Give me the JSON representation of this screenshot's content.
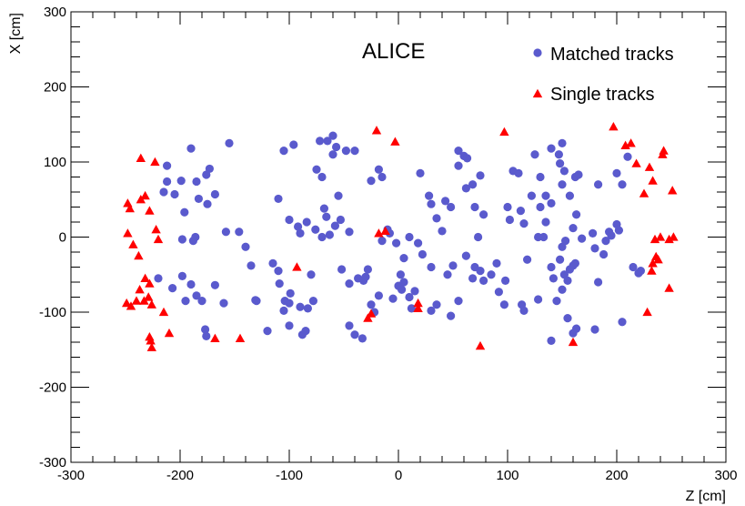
{
  "chart_data": {
    "type": "scatter",
    "title": "",
    "annotation": "ALICE",
    "xlabel": "Z [cm]",
    "ylabel": "X [cm]",
    "xlim": [
      -300,
      300
    ],
    "ylim": [
      -300,
      300
    ],
    "xticks": [
      -300,
      -200,
      -100,
      0,
      100,
      200,
      300
    ],
    "yticks": [
      -300,
      -200,
      -100,
      0,
      100,
      200,
      300
    ],
    "grid": false,
    "legend_position": "top-right",
    "series": [
      {
        "name": "Matched tracks",
        "marker": "circle",
        "color": "#5a5acd",
        "points": [
          [
            -212,
            95
          ],
          [
            -199,
            75
          ],
          [
            -205,
            57
          ],
          [
            -196,
            33
          ],
          [
            -190,
            118
          ],
          [
            -185,
            74
          ],
          [
            -176,
            83
          ],
          [
            -173,
            91
          ],
          [
            -175,
            44
          ],
          [
            -168,
            57
          ],
          [
            -183,
            51
          ],
          [
            -212,
            74
          ],
          [
            -215,
            60
          ],
          [
            -198,
            -3
          ],
          [
            -186,
            0
          ],
          [
            -188,
            -5
          ],
          [
            -220,
            -55
          ],
          [
            -207,
            -68
          ],
          [
            -198,
            -52
          ],
          [
            -190,
            -63
          ],
          [
            -195,
            -85
          ],
          [
            -185,
            -78
          ],
          [
            -180,
            -85
          ],
          [
            -177,
            -123
          ],
          [
            -176,
            -132
          ],
          [
            -168,
            -64
          ],
          [
            -160,
            -88
          ],
          [
            -155,
            125
          ],
          [
            -158,
            7
          ],
          [
            -146,
            7
          ],
          [
            -140,
            -13
          ],
          [
            -135,
            -38
          ],
          [
            -130,
            -85
          ],
          [
            -131,
            -84
          ],
          [
            -120,
            -125
          ],
          [
            -115,
            -35
          ],
          [
            -110,
            -45
          ],
          [
            -109,
            -62
          ],
          [
            -104,
            -85
          ],
          [
            -105,
            115
          ],
          [
            -96,
            123
          ],
          [
            -100,
            23
          ],
          [
            -110,
            51
          ],
          [
            -105,
            -98
          ],
          [
            -100,
            -118
          ],
          [
            -99,
            -75
          ],
          [
            -100,
            -88
          ],
          [
            -90,
            -93
          ],
          [
            -88,
            -130
          ],
          [
            -85,
            -125
          ],
          [
            -83,
            -95
          ],
          [
            -80,
            -50
          ],
          [
            -78,
            -85
          ],
          [
            -75,
            90
          ],
          [
            -70,
            80
          ],
          [
            -72,
            128
          ],
          [
            -65,
            128
          ],
          [
            -60,
            135
          ],
          [
            -60,
            110
          ],
          [
            -55,
            55
          ],
          [
            -68,
            38
          ],
          [
            -66,
            27
          ],
          [
            -92,
            14
          ],
          [
            -90,
            5
          ],
          [
            -84,
            20
          ],
          [
            -76,
            10
          ],
          [
            -70,
            0
          ],
          [
            -63,
            3
          ],
          [
            -58,
            15
          ],
          [
            -53,
            23
          ],
          [
            -52,
            -43
          ],
          [
            -45,
            -62
          ],
          [
            -57,
            120
          ],
          [
            -48,
            115
          ],
          [
            -45,
            7
          ],
          [
            -37,
            -55
          ],
          [
            -32,
            -58
          ],
          [
            -28,
            -43
          ],
          [
            -25,
            -90
          ],
          [
            -22,
            -100
          ],
          [
            -18,
            -78
          ],
          [
            -15,
            -5
          ],
          [
            -8,
            5
          ],
          [
            -2,
            -8
          ],
          [
            5,
            -28
          ],
          [
            2,
            -50
          ],
          [
            0,
            -65
          ],
          [
            -5,
            -82
          ],
          [
            12,
            -95
          ],
          [
            -10,
            10
          ],
          [
            -15,
            80
          ],
          [
            -18,
            90
          ],
          [
            -25,
            75
          ],
          [
            -40,
            -130
          ],
          [
            -45,
            -118
          ],
          [
            -33,
            -135
          ],
          [
            -30,
            -53
          ],
          [
            10,
            -80
          ],
          [
            -40,
            115
          ],
          [
            5,
            -60
          ],
          [
            20,
            85
          ],
          [
            28,
            55
          ],
          [
            30,
            44
          ],
          [
            35,
            25
          ],
          [
            40,
            8
          ],
          [
            43,
            48
          ],
          [
            48,
            40
          ],
          [
            50,
            -38
          ],
          [
            45,
            -50
          ],
          [
            30,
            -40
          ],
          [
            22,
            -23
          ],
          [
            18,
            -8
          ],
          [
            10,
            0
          ],
          [
            3,
            -70
          ],
          [
            15,
            -72
          ],
          [
            30,
            -98
          ],
          [
            35,
            -90
          ],
          [
            48,
            -105
          ],
          [
            55,
            -85
          ],
          [
            62,
            -25
          ],
          [
            62,
            65
          ],
          [
            55,
            95
          ],
          [
            55,
            115
          ],
          [
            60,
            108
          ],
          [
            63,
            105
          ],
          [
            68,
            70
          ],
          [
            75,
            82
          ],
          [
            70,
            40
          ],
          [
            78,
            30
          ],
          [
            73,
            0
          ],
          [
            70,
            -40
          ],
          [
            68,
            -55
          ],
          [
            75,
            -45
          ],
          [
            78,
            -58
          ],
          [
            85,
            -50
          ],
          [
            90,
            -35
          ],
          [
            92,
            -73
          ],
          [
            97,
            -90
          ],
          [
            98,
            -58
          ],
          [
            100,
            40
          ],
          [
            102,
            23
          ],
          [
            105,
            88
          ],
          [
            110,
            85
          ],
          [
            112,
            35
          ],
          [
            115,
            18
          ],
          [
            113,
            -90
          ],
          [
            115,
            -98
          ],
          [
            118,
            -30
          ],
          [
            122,
            55
          ],
          [
            128,
            0
          ],
          [
            130,
            40
          ],
          [
            133,
            0
          ],
          [
            135,
            20
          ],
          [
            140,
            -40
          ],
          [
            142,
            -55
          ],
          [
            145,
            -85
          ],
          [
            150,
            -70
          ],
          [
            155,
            -58
          ],
          [
            152,
            -50
          ],
          [
            157,
            -43
          ],
          [
            160,
            -38
          ],
          [
            162,
            -35
          ],
          [
            148,
            -30
          ],
          [
            150,
            -13
          ],
          [
            153,
            -5
          ],
          [
            160,
            12
          ],
          [
            163,
            30
          ],
          [
            157,
            55
          ],
          [
            150,
            70
          ],
          [
            148,
            98
          ],
          [
            147,
            110
          ],
          [
            162,
            80
          ],
          [
            165,
            83
          ],
          [
            152,
            88
          ],
          [
            140,
            45
          ],
          [
            135,
            55
          ],
          [
            130,
            80
          ],
          [
            125,
            110
          ],
          [
            140,
            118
          ],
          [
            150,
            125
          ],
          [
            155,
            -108
          ],
          [
            160,
            -128
          ],
          [
            140,
            -138
          ],
          [
            128,
            -83
          ],
          [
            180,
            -15
          ],
          [
            188,
            -23
          ],
          [
            193,
            7
          ],
          [
            195,
            2
          ],
          [
            200,
            17
          ],
          [
            202,
            9
          ],
          [
            200,
            85
          ],
          [
            205,
            70
          ],
          [
            210,
            107
          ],
          [
            215,
            -40
          ],
          [
            220,
            -48
          ],
          [
            222,
            -45
          ],
          [
            205,
            -113
          ],
          [
            180,
            -123
          ],
          [
            183,
            -60
          ],
          [
            183,
            70
          ],
          [
            190,
            -5
          ],
          [
            178,
            5
          ],
          [
            163,
            -122
          ],
          [
            168,
            -2
          ]
        ]
      },
      {
        "name": "Single tracks",
        "marker": "triangle",
        "color": "#ff0000",
        "points": [
          [
            -248,
            45
          ],
          [
            -246,
            38
          ],
          [
            -238,
            -25
          ],
          [
            -236,
            50
          ],
          [
            -232,
            55
          ],
          [
            -228,
            35
          ],
          [
            -222,
            10
          ],
          [
            -220,
            -3
          ],
          [
            -215,
            -100
          ],
          [
            -210,
            -128
          ],
          [
            -226,
            -147
          ],
          [
            -227,
            -138
          ],
          [
            -228,
            -133
          ],
          [
            -232,
            -55
          ],
          [
            -228,
            -62
          ],
          [
            -237,
            -70
          ],
          [
            -240,
            -85
          ],
          [
            -233,
            -85
          ],
          [
            -229,
            -80
          ],
          [
            -226,
            -90
          ],
          [
            -249,
            -88
          ],
          [
            -245,
            -92
          ],
          [
            -248,
            5
          ],
          [
            -243,
            -10
          ],
          [
            -236,
            105
          ],
          [
            -223,
            100
          ],
          [
            -168,
            -135
          ],
          [
            -145,
            -135
          ],
          [
            -93,
            -40
          ],
          [
            -28,
            -108
          ],
          [
            -25,
            -102
          ],
          [
            -20,
            142
          ],
          [
            -18,
            5
          ],
          [
            -12,
            8
          ],
          [
            -3,
            127
          ],
          [
            18,
            -88
          ],
          [
            18,
            -95
          ],
          [
            75,
            -145
          ],
          [
            97,
            140
          ],
          [
            160,
            -140
          ],
          [
            197,
            147
          ],
          [
            208,
            122
          ],
          [
            213,
            125
          ],
          [
            218,
            98
          ],
          [
            225,
            58
          ],
          [
            230,
            93
          ],
          [
            233,
            75
          ],
          [
            232,
            -45
          ],
          [
            235,
            -3
          ],
          [
            238,
            -30
          ],
          [
            242,
            110
          ],
          [
            243,
            115
          ],
          [
            228,
            -100
          ],
          [
            248,
            -68
          ],
          [
            251,
            62
          ],
          [
            252,
            0
          ],
          [
            248,
            -3
          ],
          [
            240,
            0
          ],
          [
            236,
            -26
          ],
          [
            233,
            -35
          ]
        ]
      }
    ]
  }
}
